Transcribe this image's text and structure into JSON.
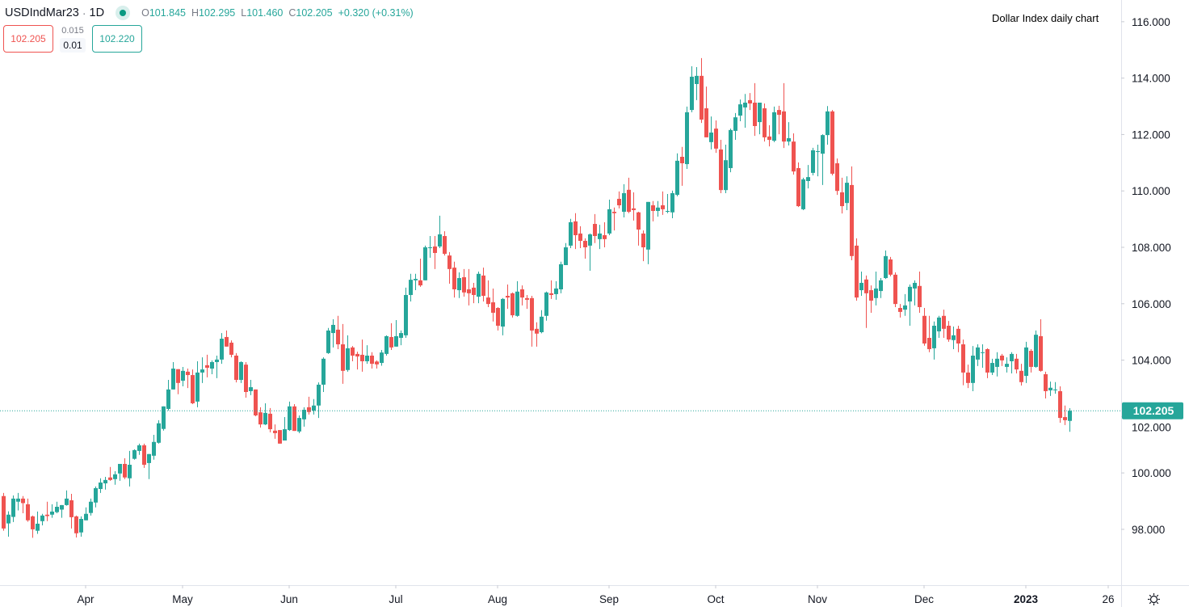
{
  "header": {
    "symbol": "USDIndMar23",
    "separator": "·",
    "interval": "1D",
    "status_color": "#089981",
    "ohlc": {
      "o_label": "O",
      "o": "101.845",
      "h_label": "H",
      "h": "102.295",
      "l_label": "L",
      "l": "101.460",
      "c_label": "C",
      "c": "102.205",
      "change": "+0.320 (+0.31%)"
    }
  },
  "quotes": {
    "bid": "102.205",
    "spread_top": "0.015",
    "spread": "0.01",
    "ask": "102.220"
  },
  "settings_icon": "gear-icon",
  "chart_data": {
    "type": "candlestick",
    "title": "Dollar Index daily chart",
    "colors": {
      "up": "#26a69a",
      "down": "#ef5350",
      "last_price": "#26a69a"
    },
    "ylim": [
      96.02,
      116.77
    ],
    "y_ticks": [
      "116.000",
      "114.000",
      "112.000",
      "110.000",
      "108.000",
      "106.000",
      "104.000",
      "102.000",
      "100.000",
      "98.000"
    ],
    "grid": false,
    "last_price": "102.205",
    "x_ticks": [
      {
        "label": "Apr",
        "bar": 17,
        "bold": false
      },
      {
        "label": "May",
        "bar": 37,
        "bold": false
      },
      {
        "label": "Jun",
        "bar": 59,
        "bold": false
      },
      {
        "label": "Jul",
        "bar": 81,
        "bold": false
      },
      {
        "label": "Aug",
        "bar": 102,
        "bold": false
      },
      {
        "label": "Sep",
        "bar": 125,
        "bold": false
      },
      {
        "label": "Oct",
        "bar": 147,
        "bold": false
      },
      {
        "label": "Nov",
        "bar": 168,
        "bold": false
      },
      {
        "label": "Dec",
        "bar": 190,
        "bold": false
      },
      {
        "label": "2023",
        "bar": 211,
        "bold": true
      },
      {
        "label": "26",
        "bar": 228,
        "bold": false
      }
    ],
    "ohlc_fields": [
      "open",
      "high",
      "low",
      "close"
    ],
    "candles": [
      [
        99.18,
        99.29,
        97.95,
        98.03
      ],
      [
        98.21,
        98.64,
        97.74,
        98.52
      ],
      [
        98.44,
        99.2,
        98.26,
        99.09
      ],
      [
        98.98,
        99.29,
        98.67,
        99.09
      ],
      [
        99.09,
        99.18,
        98.57,
        98.93
      ],
      [
        98.89,
        99.09,
        98.27,
        98.32
      ],
      [
        98.46,
        98.49,
        97.7,
        98.0
      ],
      [
        97.95,
        98.63,
        97.84,
        98.2
      ],
      [
        98.29,
        98.55,
        98.14,
        98.49
      ],
      [
        98.52,
        98.98,
        98.29,
        98.47
      ],
      [
        98.52,
        98.89,
        98.41,
        98.63
      ],
      [
        98.61,
        98.98,
        98.57,
        98.8
      ],
      [
        98.7,
        98.86,
        98.41,
        98.86
      ],
      [
        98.86,
        99.38,
        98.84,
        99.09
      ],
      [
        99.03,
        99.26,
        98.03,
        98.43
      ],
      [
        98.46,
        98.49,
        97.71,
        97.86
      ],
      [
        97.89,
        98.46,
        97.74,
        98.37
      ],
      [
        98.32,
        98.78,
        98.32,
        98.55
      ],
      [
        98.58,
        99.09,
        98.49,
        98.98
      ],
      [
        98.95,
        99.52,
        98.78,
        99.46
      ],
      [
        99.43,
        99.81,
        99.29,
        99.66
      ],
      [
        99.63,
        99.86,
        99.41,
        99.75
      ],
      [
        99.84,
        100.21,
        99.72,
        99.75
      ],
      [
        99.78,
        100.06,
        99.58,
        99.95
      ],
      [
        99.98,
        100.32,
        99.72,
        100.32
      ],
      [
        100.32,
        100.52,
        99.78,
        99.84
      ],
      [
        99.81,
        100.78,
        99.52,
        100.29
      ],
      [
        100.5,
        100.84,
        100.47,
        100.81
      ],
      [
        100.78,
        101.04,
        100.64,
        100.98
      ],
      [
        100.98,
        101.04,
        100.18,
        100.29
      ],
      [
        100.35,
        100.67,
        99.78,
        100.67
      ],
      [
        100.61,
        101.35,
        100.47,
        101.1
      ],
      [
        101.07,
        101.87,
        101.04,
        101.76
      ],
      [
        101.56,
        102.36,
        101.5,
        102.36
      ],
      [
        102.27,
        103.3,
        102.21,
        102.96
      ],
      [
        102.96,
        103.93,
        102.96,
        103.7
      ],
      [
        103.68,
        103.68,
        102.79,
        103.19
      ],
      [
        103.27,
        103.76,
        103.07,
        103.62
      ],
      [
        103.59,
        103.7,
        103.01,
        103.47
      ],
      [
        103.47,
        103.67,
        102.44,
        102.47
      ],
      [
        102.53,
        103.96,
        102.33,
        103.56
      ],
      [
        103.56,
        104.1,
        103.19,
        103.67
      ],
      [
        103.82,
        104.19,
        103.39,
        103.73
      ],
      [
        103.7,
        103.99,
        103.5,
        103.93
      ],
      [
        103.93,
        104.16,
        103.36,
        104.02
      ],
      [
        104.02,
        104.96,
        103.87,
        104.76
      ],
      [
        104.82,
        105.05,
        104.48,
        104.48
      ],
      [
        104.62,
        104.7,
        104.1,
        104.19
      ],
      [
        104.16,
        104.25,
        103.21,
        103.3
      ],
      [
        103.3,
        103.96,
        103.19,
        103.93
      ],
      [
        103.84,
        103.93,
        102.67,
        102.87
      ],
      [
        102.9,
        103.3,
        102.76,
        103.04
      ],
      [
        102.96,
        102.96,
        102.01,
        102.04
      ],
      [
        102.15,
        102.33,
        101.61,
        101.72
      ],
      [
        101.72,
        102.47,
        101.7,
        102.13
      ],
      [
        102.1,
        102.3,
        101.44,
        101.55
      ],
      [
        101.5,
        101.72,
        101.21,
        101.41
      ],
      [
        101.52,
        101.52,
        101.04,
        101.04
      ],
      [
        101.15,
        101.98,
        101.15,
        101.55
      ],
      [
        101.52,
        102.53,
        101.49,
        102.36
      ],
      [
        102.36,
        102.44,
        101.49,
        101.49
      ],
      [
        101.47,
        102.04,
        101.41,
        101.95
      ],
      [
        101.9,
        102.33,
        101.64,
        102.24
      ],
      [
        102.33,
        102.7,
        102.07,
        102.16
      ],
      [
        102.21,
        102.62,
        102.07,
        102.39
      ],
      [
        102.39,
        103.21,
        101.95,
        103.13
      ],
      [
        103.13,
        104.1,
        102.87,
        104.05
      ],
      [
        104.25,
        105.14,
        104.22,
        105.05
      ],
      [
        104.96,
        105.45,
        104.45,
        105.25
      ],
      [
        105.08,
        105.57,
        104.39,
        104.56
      ],
      [
        104.56,
        105.28,
        103.16,
        103.62
      ],
      [
        103.65,
        104.88,
        103.59,
        104.42
      ],
      [
        104.45,
        104.5,
        103.96,
        104.16
      ],
      [
        104.22,
        104.3,
        103.67,
        104.13
      ],
      [
        104.19,
        104.73,
        103.59,
        103.96
      ],
      [
        103.96,
        104.53,
        103.87,
        104.16
      ],
      [
        104.16,
        104.28,
        103.7,
        103.87
      ],
      [
        103.95,
        103.99,
        103.7,
        103.85
      ],
      [
        103.9,
        104.36,
        103.8,
        104.27
      ],
      [
        104.22,
        104.88,
        104.16,
        104.85
      ],
      [
        104.82,
        105.31,
        104.36,
        104.45
      ],
      [
        104.48,
        105.42,
        104.48,
        104.85
      ],
      [
        104.79,
        105.05,
        104.53,
        104.96
      ],
      [
        104.88,
        106.57,
        104.79,
        106.31
      ],
      [
        106.31,
        107.06,
        106.08,
        106.85
      ],
      [
        106.83,
        107.06,
        106.48,
        106.88
      ],
      [
        106.83,
        107.6,
        106.6,
        106.65
      ],
      [
        106.83,
        108.06,
        106.83,
        108.0
      ],
      [
        107.97,
        108.4,
        107.63,
        108.0
      ],
      [
        108.03,
        108.4,
        107.23,
        107.8
      ],
      [
        108.03,
        109.12,
        107.97,
        108.46
      ],
      [
        108.4,
        108.57,
        107.71,
        107.77
      ],
      [
        107.71,
        107.83,
        106.71,
        107.23
      ],
      [
        107.28,
        107.49,
        106.22,
        106.51
      ],
      [
        106.48,
        107.11,
        106.2,
        106.91
      ],
      [
        106.94,
        107.23,
        106.25,
        106.4
      ],
      [
        106.51,
        107.23,
        105.94,
        106.37
      ],
      [
        106.57,
        106.74,
        106.02,
        106.31
      ],
      [
        106.25,
        107.14,
        106.02,
        107.06
      ],
      [
        107.0,
        107.28,
        106.08,
        106.28
      ],
      [
        106.22,
        106.83,
        105.88,
        105.99
      ],
      [
        106.05,
        106.54,
        105.37,
        105.68
      ],
      [
        105.85,
        105.88,
        105.05,
        105.22
      ],
      [
        105.19,
        106.2,
        104.88,
        106.17
      ],
      [
        106.28,
        106.68,
        105.82,
        106.22
      ],
      [
        106.37,
        106.4,
        105.51,
        105.59
      ],
      [
        105.57,
        106.8,
        105.54,
        106.43
      ],
      [
        106.51,
        106.65,
        105.94,
        106.22
      ],
      [
        106.2,
        106.31,
        105.82,
        106.14
      ],
      [
        106.2,
        106.28,
        104.48,
        105.05
      ],
      [
        105.11,
        105.34,
        104.48,
        104.94
      ],
      [
        104.99,
        105.77,
        104.95,
        105.54
      ],
      [
        105.57,
        106.43,
        105.4,
        106.4
      ],
      [
        106.37,
        106.83,
        106.17,
        106.31
      ],
      [
        106.34,
        106.8,
        106.14,
        106.54
      ],
      [
        106.51,
        107.49,
        106.37,
        107.4
      ],
      [
        107.37,
        108.15,
        107.37,
        108.0
      ],
      [
        108.06,
        109.01,
        107.97,
        108.89
      ],
      [
        108.92,
        109.21,
        107.94,
        108.43
      ],
      [
        108.49,
        108.75,
        107.97,
        108.23
      ],
      [
        108.23,
        108.32,
        107.6,
        108.0
      ],
      [
        108.06,
        108.49,
        107.17,
        108.46
      ],
      [
        108.83,
        109.18,
        108.15,
        108.4
      ],
      [
        108.29,
        108.8,
        107.94,
        108.49
      ],
      [
        108.43,
        108.89,
        108.0,
        108.29
      ],
      [
        108.49,
        109.69,
        108.43,
        109.35
      ],
      [
        109.26,
        109.41,
        108.6,
        109.21
      ],
      [
        109.72,
        109.98,
        109.38,
        109.49
      ],
      [
        109.26,
        110.24,
        109.06,
        109.92
      ],
      [
        110.04,
        110.47,
        109.21,
        109.26
      ],
      [
        109.38,
        109.95,
        108.95,
        109.32
      ],
      [
        109.24,
        109.26,
        108.06,
        108.63
      ],
      [
        108.49,
        108.6,
        107.51,
        108.0
      ],
      [
        107.92,
        109.61,
        107.4,
        109.61
      ],
      [
        109.49,
        109.64,
        108.92,
        109.29
      ],
      [
        109.29,
        109.64,
        109.09,
        109.41
      ],
      [
        109.49,
        109.98,
        109.15,
        109.35
      ],
      [
        109.26,
        109.89,
        109.21,
        109.29
      ],
      [
        109.24,
        110.01,
        109.03,
        109.92
      ],
      [
        109.86,
        111.33,
        109.81,
        111.07
      ],
      [
        111.21,
        111.56,
        110.18,
        110.98
      ],
      [
        110.95,
        112.99,
        110.78,
        112.79
      ],
      [
        112.87,
        114.42,
        112.79,
        114.05
      ],
      [
        113.79,
        114.39,
        113.22,
        114.08
      ],
      [
        114.08,
        114.71,
        112.41,
        112.53
      ],
      [
        112.93,
        113.7,
        111.9,
        111.9
      ],
      [
        111.73,
        112.64,
        111.47,
        112.07
      ],
      [
        112.21,
        112.5,
        111.35,
        111.5
      ],
      [
        111.47,
        111.81,
        109.92,
        110.03
      ],
      [
        110.03,
        111.64,
        109.92,
        111.09
      ],
      [
        110.81,
        112.21,
        110.66,
        112.16
      ],
      [
        112.13,
        112.76,
        111.81,
        112.61
      ],
      [
        112.67,
        113.24,
        112.47,
        113.07
      ],
      [
        112.96,
        113.44,
        112.24,
        113.13
      ],
      [
        113.22,
        113.47,
        112.87,
        113.1
      ],
      [
        113.13,
        113.82,
        111.95,
        112.3
      ],
      [
        112.44,
        113.13,
        112.01,
        113.13
      ],
      [
        112.93,
        113.1,
        111.75,
        111.9
      ],
      [
        111.93,
        112.33,
        111.58,
        111.81
      ],
      [
        111.78,
        112.99,
        111.73,
        112.79
      ],
      [
        112.87,
        113.02,
        112.01,
        112.7
      ],
      [
        112.82,
        113.82,
        111.52,
        111.75
      ],
      [
        111.75,
        112.44,
        111.61,
        111.87
      ],
      [
        111.75,
        112.04,
        110.58,
        110.69
      ],
      [
        110.81,
        111.01,
        109.43,
        109.46
      ],
      [
        109.35,
        110.47,
        109.32,
        110.41
      ],
      [
        110.35,
        110.92,
        110.09,
        110.49
      ],
      [
        110.64,
        111.53,
        110.55,
        111.44
      ],
      [
        111.38,
        111.64,
        110.52,
        111.41
      ],
      [
        111.32,
        112.01,
        110.21,
        111.98
      ],
      [
        111.98,
        113.01,
        111.64,
        112.82
      ],
      [
        112.82,
        112.87,
        110.55,
        110.61
      ],
      [
        110.98,
        111.15,
        109.86,
        110.0
      ],
      [
        109.95,
        110.47,
        109.2,
        109.46
      ],
      [
        109.57,
        110.52,
        109.32,
        110.29
      ],
      [
        110.21,
        110.87,
        107.54,
        107.69
      ],
      [
        108.06,
        108.32,
        106.11,
        106.22
      ],
      [
        106.48,
        107.14,
        106.28,
        106.74
      ],
      [
        106.86,
        107.0,
        105.14,
        106.37
      ],
      [
        106.48,
        106.65,
        105.68,
        106.11
      ],
      [
        106.2,
        107.14,
        105.94,
        106.54
      ],
      [
        106.45,
        106.91,
        106.2,
        106.83
      ],
      [
        106.91,
        107.89,
        106.88,
        107.69
      ],
      [
        107.57,
        107.66,
        106.97,
        107.03
      ],
      [
        107.03,
        107.11,
        105.88,
        105.99
      ],
      [
        105.85,
        105.99,
        105.51,
        105.71
      ],
      [
        105.79,
        106.34,
        105.57,
        105.94
      ],
      [
        106.08,
        106.68,
        105.22,
        106.6
      ],
      [
        106.54,
        106.83,
        105.94,
        106.74
      ],
      [
        106.63,
        107.14,
        105.68,
        105.88
      ],
      [
        105.57,
        105.85,
        104.51,
        104.59
      ],
      [
        104.79,
        105.57,
        104.28,
        104.39
      ],
      [
        104.42,
        105.37,
        104.02,
        105.22
      ],
      [
        105.02,
        105.57,
        104.79,
        105.51
      ],
      [
        105.57,
        105.79,
        104.79,
        105.11
      ],
      [
        105.22,
        105.39,
        104.65,
        104.73
      ],
      [
        104.71,
        105.19,
        104.39,
        104.88
      ],
      [
        105.11,
        105.22,
        104.28,
        104.59
      ],
      [
        104.56,
        104.73,
        103.11,
        103.56
      ],
      [
        103.56,
        103.84,
        103.01,
        103.19
      ],
      [
        103.19,
        104.5,
        102.9,
        104.16
      ],
      [
        104.02,
        104.56,
        103.79,
        104.45
      ],
      [
        104.25,
        104.56,
        103.73,
        104.28
      ],
      [
        104.39,
        104.42,
        103.36,
        103.56
      ],
      [
        103.56,
        104.05,
        103.47,
        103.9
      ],
      [
        103.76,
        104.28,
        103.42,
        104.05
      ],
      [
        104.16,
        104.22,
        103.79,
        103.99
      ],
      [
        103.76,
        104.1,
        103.56,
        103.87
      ],
      [
        103.96,
        104.28,
        103.53,
        104.22
      ],
      [
        104.05,
        104.22,
        103.53,
        103.67
      ],
      [
        103.62,
        103.87,
        103.1,
        103.22
      ],
      [
        103.44,
        104.65,
        103.19,
        104.45
      ],
      [
        104.33,
        104.39,
        103.56,
        103.76
      ],
      [
        103.76,
        105.05,
        103.73,
        104.9
      ],
      [
        104.85,
        105.45,
        103.59,
        103.62
      ],
      [
        103.5,
        103.59,
        102.64,
        102.9
      ],
      [
        102.93,
        103.24,
        102.73,
        103.02
      ],
      [
        102.93,
        103.22,
        102.81,
        102.96
      ],
      [
        102.9,
        103.07,
        101.78,
        101.95
      ],
      [
        101.98,
        102.39,
        101.7,
        101.87
      ],
      [
        101.845,
        102.295,
        101.46,
        102.205
      ]
    ]
  }
}
